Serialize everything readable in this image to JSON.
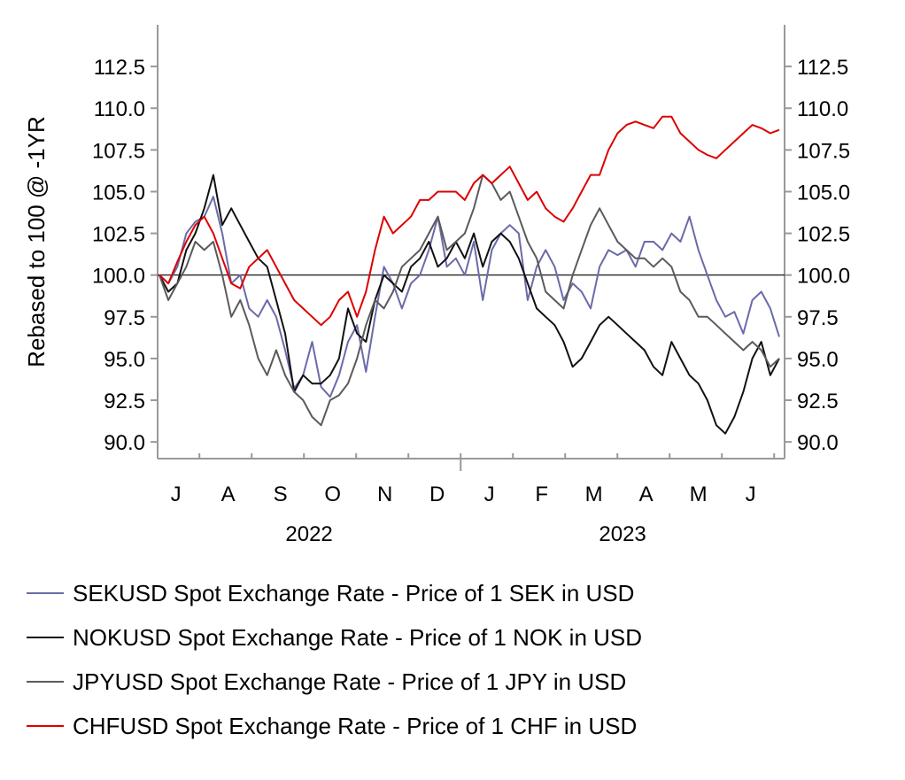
{
  "chart_data": {
    "type": "line",
    "ylabel": "Rebased to 100 @ -1YR",
    "ylim": [
      89,
      115
    ],
    "yticks": [
      "90.0",
      "92.5",
      "95.0",
      "97.5",
      "100.0",
      "102.5",
      "105.0",
      "107.5",
      "110.0",
      "112.5"
    ],
    "ytick_values": [
      90.0,
      92.5,
      95.0,
      97.5,
      100.0,
      102.5,
      105.0,
      107.5,
      110.0,
      112.5
    ],
    "reference_line": 100.0,
    "x_month_labels": [
      "J",
      "A",
      "S",
      "O",
      "N",
      "D",
      "J",
      "F",
      "M",
      "A",
      "M",
      "J"
    ],
    "x_year_labels": [
      "2022",
      "2023"
    ],
    "legend_position": "bottom",
    "series": [
      {
        "name": "SEKUSD Spot Exchange Rate - Price of 1 SEK in USD",
        "color": "#6a6aaa",
        "values": [
          100.0,
          99.5,
          100.5,
          102.5,
          103.2,
          103.5,
          104.7,
          102.5,
          99.5,
          100.0,
          98.0,
          97.5,
          98.5,
          97.5,
          95.5,
          93.2,
          94.0,
          96.0,
          93.3,
          92.7,
          94.0,
          96.0,
          97.0,
          94.2,
          97.5,
          100.5,
          99.5,
          98.0,
          99.5,
          100.0,
          101.5,
          103.5,
          100.5,
          101.0,
          100.0,
          102.0,
          98.5,
          101.5,
          102.5,
          103.0,
          102.5,
          98.5,
          100.5,
          101.5,
          100.5,
          98.5,
          99.5,
          99.0,
          98.0,
          100.5,
          101.5,
          101.2,
          101.5,
          100.5,
          102.0,
          102.0,
          101.5,
          102.5,
          102.0,
          103.5,
          101.5,
          100.0,
          98.5,
          97.5,
          97.8,
          96.5,
          98.5,
          99.0,
          98.0,
          96.3
        ]
      },
      {
        "name": "NOKUSD Spot Exchange Rate - Price of 1 NOK in USD",
        "color": "#111111",
        "values": [
          100.0,
          99.0,
          99.5,
          101.5,
          102.5,
          104.0,
          106.0,
          103.0,
          104.0,
          103.0,
          102.0,
          101.0,
          100.5,
          98.5,
          96.5,
          93.0,
          94.0,
          93.5,
          93.5,
          94.0,
          95.0,
          98.0,
          96.5,
          96.0,
          98.5,
          100.0,
          99.5,
          99.0,
          100.5,
          101.0,
          102.0,
          100.5,
          101.0,
          102.0,
          101.0,
          102.5,
          100.5,
          102.0,
          102.5,
          102.0,
          101.0,
          99.5,
          98.0,
          97.5,
          97.0,
          96.0,
          94.5,
          95.0,
          96.0,
          97.0,
          97.5,
          97.0,
          96.5,
          96.0,
          95.5,
          94.5,
          94.0,
          96.0,
          95.0,
          94.0,
          93.5,
          92.5,
          91.0,
          90.5,
          91.5,
          93.0,
          95.0,
          96.0,
          94.0,
          95.0
        ]
      },
      {
        "name": "JPYUSD Spot Exchange Rate - Price of 1 JPY in USD",
        "color": "#5a5a5a",
        "values": [
          100.0,
          98.5,
          99.5,
          100.5,
          102.0,
          101.5,
          102.0,
          100.0,
          97.5,
          98.5,
          97.0,
          95.0,
          94.0,
          95.5,
          94.0,
          93.0,
          92.5,
          91.5,
          91.0,
          92.5,
          92.8,
          93.5,
          95.0,
          97.0,
          98.5,
          98.0,
          99.0,
          100.5,
          101.0,
          101.5,
          102.5,
          103.5,
          101.5,
          102.0,
          102.5,
          104.0,
          106.0,
          105.5,
          104.5,
          105.0,
          103.5,
          102.0,
          101.0,
          99.0,
          98.5,
          98.0,
          100.0,
          101.5,
          103.0,
          104.0,
          103.0,
          102.0,
          101.5,
          101.0,
          101.0,
          100.5,
          101.0,
          100.5,
          99.0,
          98.5,
          97.5,
          97.5,
          97.0,
          96.5,
          96.0,
          95.5,
          96.0,
          95.5,
          94.5,
          95.0
        ]
      },
      {
        "name": "CHFUSD Spot Exchange Rate - Price of 1 CHF in USD",
        "color": "#dd0000",
        "values": [
          100.0,
          99.5,
          100.8,
          102.0,
          103.0,
          103.5,
          102.5,
          101.0,
          99.5,
          99.2,
          100.5,
          101.0,
          101.5,
          100.5,
          99.5,
          98.5,
          98.0,
          97.5,
          97.0,
          97.5,
          98.5,
          99.0,
          97.5,
          99.0,
          101.5,
          103.5,
          102.5,
          103.0,
          103.5,
          104.5,
          104.5,
          105.0,
          105.0,
          105.0,
          104.5,
          105.5,
          106.0,
          105.5,
          106.0,
          106.5,
          105.5,
          104.5,
          105.0,
          104.0,
          103.5,
          103.2,
          104.0,
          105.0,
          106.0,
          106.0,
          107.5,
          108.5,
          109.0,
          109.2,
          109.0,
          108.8,
          109.5,
          109.5,
          108.5,
          108.0,
          107.5,
          107.2,
          107.0,
          107.5,
          108.0,
          108.5,
          109.0,
          108.8,
          108.5,
          108.7
        ]
      }
    ]
  }
}
